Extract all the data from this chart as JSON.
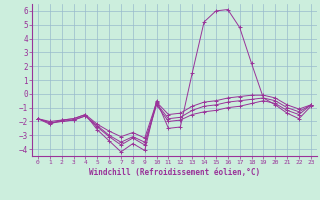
{
  "xlabel": "Windchill (Refroidissement éolien,°C)",
  "bg_color": "#cceedd",
  "line_color": "#993399",
  "grid_color": "#99bbcc",
  "xlim": [
    -0.5,
    23.5
  ],
  "ylim": [
    -4.5,
    6.5
  ],
  "yticks": [
    -4,
    -3,
    -2,
    -1,
    0,
    1,
    2,
    3,
    4,
    5,
    6
  ],
  "xticks": [
    0,
    1,
    2,
    3,
    4,
    5,
    6,
    7,
    8,
    9,
    10,
    11,
    12,
    13,
    14,
    15,
    16,
    17,
    18,
    19,
    20,
    21,
    22,
    23
  ],
  "series": [
    {
      "x": [
        0,
        1,
        2,
        3,
        4,
        5,
        6,
        7,
        8,
        9,
        10,
        11,
        12,
        13,
        14,
        15,
        16,
        17,
        18,
        19,
        20,
        21,
        22,
        23
      ],
      "y": [
        -1.8,
        -2.2,
        -1.9,
        -1.8,
        -1.5,
        -2.6,
        -3.4,
        -4.2,
        -3.6,
        -4.1,
        -0.5,
        -2.5,
        -2.4,
        1.5,
        5.2,
        6.0,
        6.1,
        4.8,
        2.2,
        -0.3,
        -0.8,
        -1.4,
        -1.8,
        -0.9
      ]
    },
    {
      "x": [
        0,
        1,
        2,
        3,
        4,
        5,
        6,
        7,
        8,
        9,
        10,
        11,
        12,
        13,
        14,
        15,
        16,
        17,
        18,
        19,
        20,
        21,
        22,
        23
      ],
      "y": [
        -1.8,
        -2.1,
        -2.0,
        -1.9,
        -1.6,
        -2.4,
        -3.1,
        -3.7,
        -3.2,
        -3.7,
        -0.8,
        -2.0,
        -1.9,
        -1.5,
        -1.3,
        -1.2,
        -1.0,
        -0.9,
        -0.7,
        -0.5,
        -0.7,
        -1.2,
        -1.5,
        -0.8
      ]
    },
    {
      "x": [
        0,
        1,
        2,
        3,
        4,
        5,
        6,
        7,
        8,
        9,
        10,
        11,
        12,
        13,
        14,
        15,
        16,
        17,
        18,
        19,
        20,
        21,
        22,
        23
      ],
      "y": [
        -1.8,
        -2.1,
        -2.0,
        -1.9,
        -1.6,
        -2.3,
        -3.0,
        -3.5,
        -3.1,
        -3.5,
        -0.7,
        -1.8,
        -1.7,
        -1.2,
        -0.9,
        -0.8,
        -0.6,
        -0.5,
        -0.4,
        -0.3,
        -0.5,
        -1.0,
        -1.3,
        -0.8
      ]
    },
    {
      "x": [
        0,
        1,
        2,
        3,
        4,
        5,
        6,
        7,
        8,
        9,
        10,
        11,
        12,
        13,
        14,
        15,
        16,
        17,
        18,
        19,
        20,
        21,
        22,
        23
      ],
      "y": [
        -1.8,
        -2.0,
        -1.9,
        -1.8,
        -1.5,
        -2.2,
        -2.7,
        -3.1,
        -2.8,
        -3.2,
        -0.6,
        -1.5,
        -1.4,
        -0.9,
        -0.6,
        -0.5,
        -0.3,
        -0.2,
        -0.1,
        -0.1,
        -0.3,
        -0.8,
        -1.1,
        -0.8
      ]
    }
  ]
}
